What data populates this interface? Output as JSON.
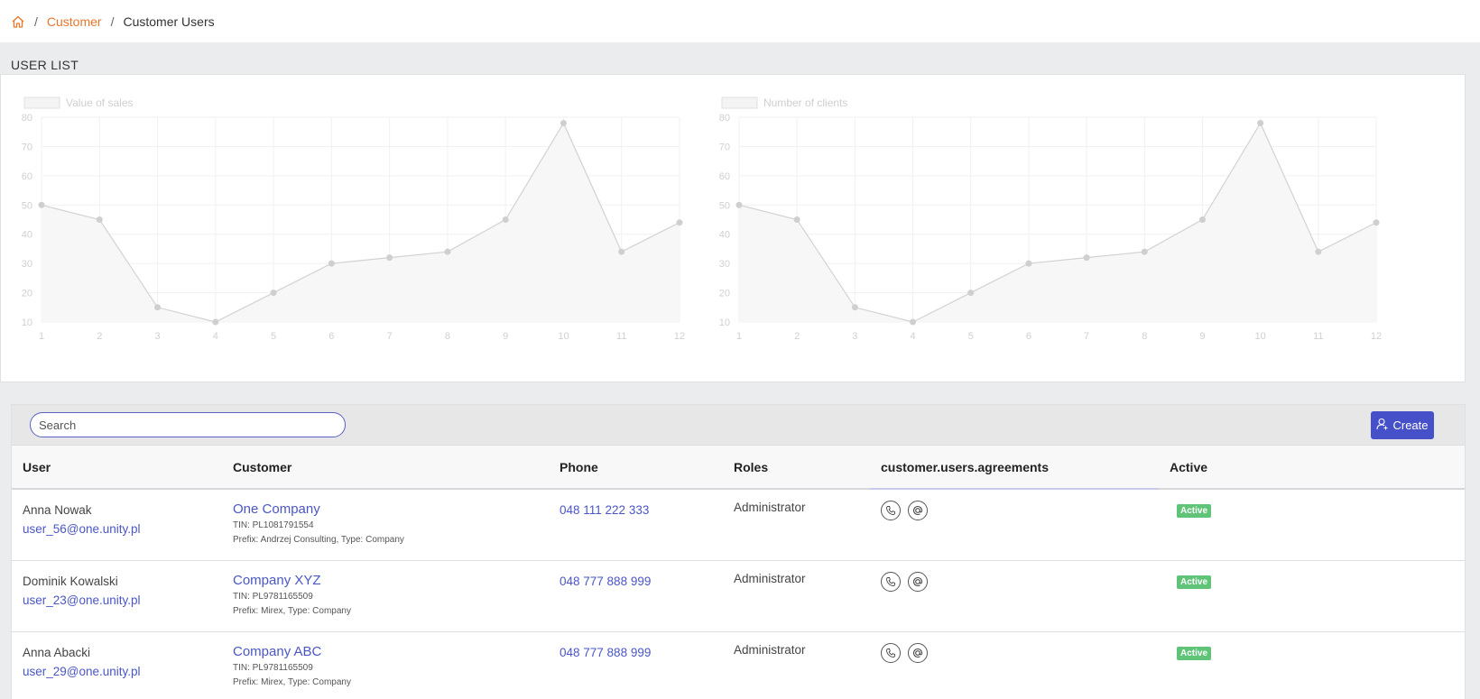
{
  "breadcrumb": {
    "home_icon": "home-icon",
    "items": [
      "Customer",
      "Customer Users"
    ]
  },
  "page": {
    "title": "USER LIST"
  },
  "colors": {
    "accent": "#4650c8",
    "breadcrumb_link": "#e8762b",
    "active_badge": "#5fc378",
    "link": "#4a56c6"
  },
  "chart_data": [
    {
      "type": "line",
      "title": "",
      "legend": "Value of sales",
      "x": [
        1,
        2,
        3,
        4,
        5,
        6,
        7,
        8,
        9,
        10,
        11,
        12
      ],
      "series": [
        {
          "name": "Value of sales",
          "values": [
            50,
            45,
            15,
            10,
            20,
            30,
            32,
            34,
            45,
            78,
            34,
            44
          ]
        }
      ],
      "ylim": [
        10,
        80
      ],
      "yticks": [
        80,
        70,
        60,
        50,
        40,
        30,
        20,
        10
      ],
      "grid": true,
      "legend_position": "top-left",
      "fill": true
    },
    {
      "type": "line",
      "title": "",
      "legend": "Number of clients",
      "x": [
        1,
        2,
        3,
        4,
        5,
        6,
        7,
        8,
        9,
        10,
        11,
        12
      ],
      "series": [
        {
          "name": "Number of clients",
          "values": [
            50,
            45,
            15,
            10,
            20,
            30,
            32,
            34,
            45,
            78,
            34,
            44
          ]
        }
      ],
      "ylim": [
        10,
        80
      ],
      "yticks": [
        80,
        70,
        60,
        50,
        40,
        30,
        20,
        10
      ],
      "grid": true,
      "legend_position": "top-left",
      "fill": true
    }
  ],
  "toolbar": {
    "search_placeholder": "Search",
    "create_label": "Create",
    "create_icon": "add-user-icon"
  },
  "table": {
    "columns": [
      "User",
      "Customer",
      "Phone",
      "Roles",
      "customer.users.agreements",
      "Active"
    ],
    "rows": [
      {
        "user_name": "Anna Nowak",
        "user_email": "user_56@one.unity.pl",
        "customer_name": "One Company",
        "customer_tin": "TIN: PL1081791554",
        "customer_meta": "Prefix: Andrzej Consulting, Type: Company",
        "phone": "048 111 222 333",
        "role": "Administrator",
        "agreement_icons": [
          "phone-icon",
          "at-icon"
        ],
        "active": "Active"
      },
      {
        "user_name": "Dominik Kowalski",
        "user_email": "user_23@one.unity.pl",
        "customer_name": "Company XYZ",
        "customer_tin": "TIN: PL9781165509",
        "customer_meta": "Prefix: Mirex, Type: Company",
        "phone": "048 777 888 999",
        "role": "Administrator",
        "agreement_icons": [
          "phone-icon",
          "at-icon"
        ],
        "active": "Active"
      },
      {
        "user_name": "Anna Abacki",
        "user_email": "user_29@one.unity.pl",
        "customer_name": "Company ABC",
        "customer_tin": "TIN: PL9781165509",
        "customer_meta": "Prefix: Mirex, Type: Company",
        "phone": "048 777 888 999",
        "role": "Administrator",
        "agreement_icons": [
          "phone-icon",
          "at-icon"
        ],
        "active": "Active"
      }
    ]
  }
}
